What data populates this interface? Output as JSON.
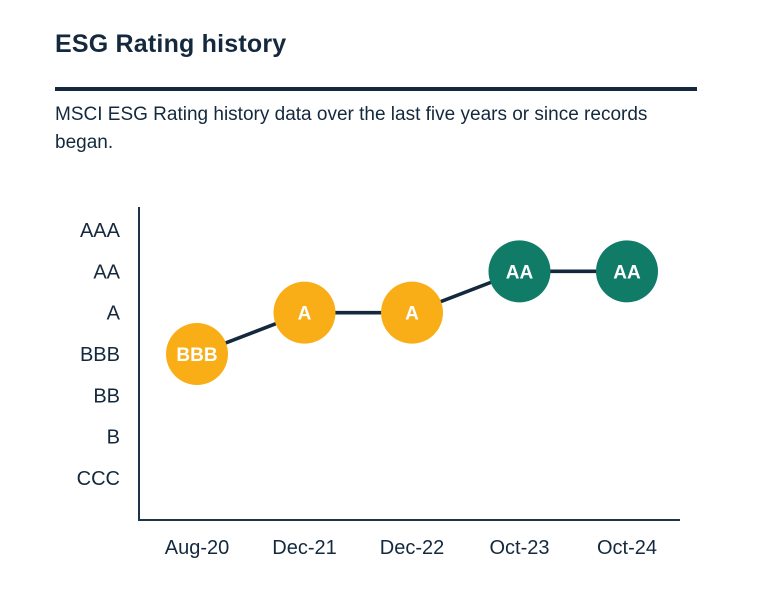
{
  "page": {
    "title": "ESG Rating history",
    "subtitle": "MSCI ESG Rating history data over the last five years or since records began."
  },
  "colors": {
    "navy": "#14293D",
    "yellow": "#F9AE18",
    "teal": "#107C68",
    "point_text": "#FFFFFF",
    "background": "#FFFFFF"
  },
  "chart_data": {
    "type": "line",
    "title": "ESG Rating history",
    "y_scale_top_to_bottom": [
      "AAA",
      "AA",
      "A",
      "BBB",
      "BB",
      "B",
      "CCC"
    ],
    "categories": [
      "Aug-20",
      "Dec-21",
      "Dec-22",
      "Oct-23",
      "Oct-24"
    ],
    "points": [
      {
        "date": "Aug-20",
        "rating": "BBB",
        "color": "#F9AE18"
      },
      {
        "date": "Dec-21",
        "rating": "A",
        "color": "#F9AE18"
      },
      {
        "date": "Dec-22",
        "rating": "A",
        "color": "#F9AE18"
      },
      {
        "date": "Oct-23",
        "rating": "AA",
        "color": "#107C68"
      },
      {
        "date": "Oct-24",
        "rating": "AA",
        "color": "#107C68"
      }
    ],
    "legend": "none",
    "grid": "off",
    "marker_style": "filled circle with rating label inside"
  }
}
